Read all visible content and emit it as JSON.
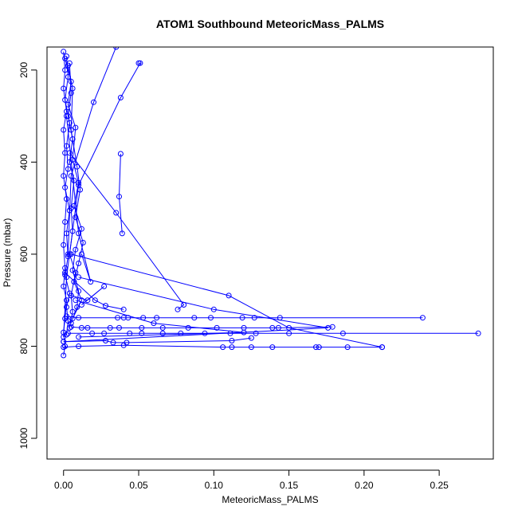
{
  "chart_data": {
    "type": "line",
    "title": "ATOM1 Southbound MeteoricMass_PALMS",
    "xlabel": "MeteoricMass_PALMS",
    "ylabel": "Pressure (mbar)",
    "xlim": [
      -0.011,
      0.286
    ],
    "ylim": [
      1045,
      150
    ],
    "y_reversed": true,
    "x_ticks": [
      0.0,
      0.05,
      0.1,
      0.15,
      0.2,
      0.25
    ],
    "x_tick_labels": [
      "0.00",
      "0.05",
      "0.10",
      "0.15",
      "0.20",
      "0.25"
    ],
    "y_ticks": [
      200,
      400,
      600,
      800,
      1000
    ],
    "y_tick_labels": [
      "200",
      "400",
      "600",
      "800",
      "1000"
    ],
    "grid": false,
    "legend": "none",
    "series_color": "#0000ff",
    "series": [
      {
        "x": [
          0.0,
          0.001,
          0.0,
          0.002,
          0.0,
          0.001,
          0.0,
          0.002,
          0.001,
          0.0,
          0.001,
          0.0,
          0.002,
          0.001,
          0.0,
          0.001,
          0.0
        ],
        "y": [
          160,
          200,
          240,
          290,
          330,
          380,
          430,
          480,
          530,
          580,
          630,
          670,
          700,
          740,
          770,
          800,
          820
        ]
      },
      {
        "x": [
          0.002,
          0.003,
          0.001,
          0.004,
          0.002,
          0.003,
          0.001,
          0.004,
          0.002,
          0.003,
          0.001,
          0.004,
          0.002,
          0.003,
          0.002
        ],
        "y": [
          170,
          215,
          265,
          315,
          365,
          415,
          455,
          505,
          555,
          605,
          645,
          685,
          715,
          745,
          775
        ]
      },
      {
        "x": [
          0.004,
          0.005,
          0.003,
          0.006,
          0.004,
          0.007,
          0.005,
          0.006,
          0.004,
          0.008,
          0.005,
          0.006,
          0.004
        ],
        "y": [
          185,
          250,
          300,
          350,
          400,
          440,
          500,
          550,
          600,
          640,
          690,
          725,
          760
        ]
      },
      {
        "x": [
          0.001,
          0.005,
          0.003,
          0.008,
          0.006,
          0.01,
          0.007,
          0.012,
          0.008,
          0.006,
          0.01,
          0.009,
          0.005
        ],
        "y": [
          175,
          225,
          275,
          325,
          395,
          445,
          495,
          545,
          590,
          635,
          680,
          715,
          750
        ]
      },
      {
        "x": [
          0.003,
          0.006,
          0.005,
          0.009,
          0.011,
          0.008,
          0.013,
          0.01,
          0.007,
          0.012,
          0.006
        ],
        "y": [
          190,
          240,
          330,
          410,
          460,
          520,
          575,
          620,
          660,
          700,
          740
        ]
      },
      {
        "x": [
          0.038,
          0.037,
          0.039
        ],
        "y": [
          382,
          475,
          555
        ]
      },
      {
        "x": [
          0.05,
          0.051,
          0.038,
          0.01,
          0.002,
          0.0
        ],
        "y": [
          185,
          185,
          260,
          450,
          650,
          780
        ]
      },
      {
        "x": [
          0.035,
          0.02,
          0.005,
          0.003
        ],
        "y": [
          150,
          270,
          430,
          600
        ]
      },
      {
        "x": [
          0.004,
          0.035,
          0.08,
          0.076
        ],
        "y": [
          380,
          510,
          710,
          720
        ]
      },
      {
        "x": [
          0.002,
          0.01,
          0.018,
          0.012
        ],
        "y": [
          300,
          555,
          660,
          600
        ]
      },
      {
        "x": [
          0.005,
          0.016,
          0.027,
          0.012
        ],
        "y": [
          690,
          700,
          670,
          710
        ]
      },
      {
        "x": [
          0.001,
          0.021,
          0.028,
          0.04
        ],
        "y": [
          640,
          700,
          712,
          720
        ]
      },
      {
        "x": [
          0.002,
          0.01,
          0.036,
          0.04,
          0.043,
          0.053,
          0.062,
          0.087,
          0.098,
          0.119,
          0.127,
          0.144,
          0.239
        ],
        "y": [
          735,
          738,
          738,
          738,
          738,
          738,
          738,
          738,
          738,
          738,
          738,
          738,
          738
        ]
      },
      {
        "x": [
          0.005,
          0.012,
          0.016,
          0.031,
          0.037,
          0.052,
          0.066,
          0.083,
          0.102,
          0.12,
          0.139,
          0.143,
          0.179
        ],
        "y": [
          758,
          760,
          760,
          760,
          760,
          760,
          760,
          760,
          760,
          760,
          760,
          760,
          758
        ]
      },
      {
        "x": [
          0.003,
          0.019,
          0.027,
          0.044,
          0.052,
          0.066,
          0.078,
          0.094,
          0.111,
          0.128,
          0.15,
          0.186,
          0.276
        ],
        "y": [
          772,
          772,
          772,
          772,
          772,
          772,
          772,
          772,
          772,
          772,
          772,
          772,
          772
        ]
      },
      {
        "x": [
          0.0,
          0.01,
          0.04,
          0.106,
          0.112,
          0.125,
          0.139,
          0.168,
          0.17,
          0.189,
          0.212
        ],
        "y": [
          802,
          800,
          798,
          802,
          802,
          802,
          802,
          802,
          802,
          802,
          802
        ]
      },
      {
        "x": [
          0.0,
          0.028,
          0.033,
          0.042,
          0.112,
          0.125
        ],
        "y": [
          790,
          788,
          792,
          792,
          788,
          782
        ]
      },
      {
        "x": [
          0.005,
          0.11,
          0.15,
          0.212
        ],
        "y": [
          600,
          690,
          760,
          802
        ]
      },
      {
        "x": [
          0.01,
          0.1,
          0.176,
          0.0
        ],
        "y": [
          650,
          720,
          760,
          790
        ]
      },
      {
        "x": [
          0.008,
          0.06,
          0.12,
          0.01
        ],
        "y": [
          700,
          750,
          770,
          780
        ]
      }
    ]
  }
}
